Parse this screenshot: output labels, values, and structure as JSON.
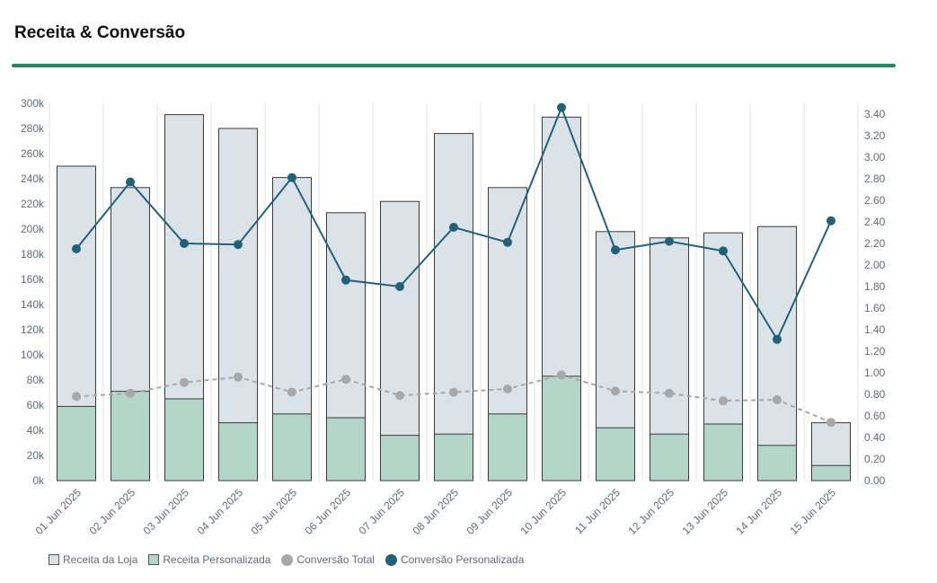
{
  "title": "Receita & Conversão",
  "colors": {
    "accent": "#1e8a5e",
    "loja_fill": "#dbe3e8",
    "pers_fill": "#b3d6c8",
    "bar_stroke": "#3a3a3a",
    "conv_total": "#a8a8a8",
    "conv_pers": "#23607a",
    "grid": "#e3e3e3",
    "tick": "#5f6b7a"
  },
  "chart_data": {
    "type": "bar",
    "categories": [
      "01 Jun 2025",
      "02 Jun 2025",
      "03 Jun 2025",
      "04 Jun 2025",
      "05 Jun 2025",
      "06 Jun 2025",
      "07 Jun 2025",
      "08 Jun 2025",
      "09 Jun 2025",
      "10 Jun 2025",
      "11 Jun 2025",
      "12 Jun 2025",
      "13 Jun 2025",
      "14 Jun 2025",
      "15 Jun 2025"
    ],
    "series": [
      {
        "name": "Receita da Loja",
        "kind": "bar",
        "axis": "left",
        "values": [
          250000,
          233000,
          291000,
          280000,
          241000,
          213000,
          222000,
          276000,
          233000,
          289000,
          198000,
          193000,
          197000,
          202000,
          46000
        ]
      },
      {
        "name": "Receita Personalizada",
        "kind": "bar",
        "axis": "left",
        "values": [
          59000,
          71000,
          65000,
          46000,
          53000,
          50000,
          36000,
          37000,
          53000,
          83000,
          42000,
          37000,
          45000,
          28000,
          12000
        ]
      },
      {
        "name": "Conversão Total",
        "kind": "line-dashed",
        "axis": "right",
        "values": [
          0.78,
          0.81,
          0.91,
          0.96,
          0.82,
          0.94,
          0.79,
          0.82,
          0.85,
          0.98,
          0.83,
          0.81,
          0.74,
          0.75,
          0.54
        ]
      },
      {
        "name": "Conversão Personalizada",
        "kind": "line",
        "axis": "right",
        "values": [
          2.15,
          2.77,
          2.2,
          2.19,
          2.81,
          1.86,
          1.8,
          2.35,
          2.21,
          3.46,
          2.14,
          2.22,
          2.13,
          1.31,
          2.41
        ]
      }
    ],
    "ylim": [
      0,
      300000
    ],
    "y_ticks": [
      "0k",
      "20k",
      "40k",
      "60k",
      "80k",
      "100k",
      "120k",
      "140k",
      "160k",
      "180k",
      "200k",
      "220k",
      "240k",
      "260k",
      "280k",
      "300k"
    ],
    "y2lim": [
      0,
      3.5
    ],
    "y2_ticks": [
      "0.00",
      "0.20",
      "0.40",
      "0.60",
      "0.80",
      "1.00",
      "1.20",
      "1.40",
      "1.60",
      "1.80",
      "2.00",
      "2.20",
      "2.40",
      "2.60",
      "2.80",
      "3.00",
      "3.20",
      "3.40"
    ],
    "grid": "vertical",
    "legend": "bottom-left"
  }
}
